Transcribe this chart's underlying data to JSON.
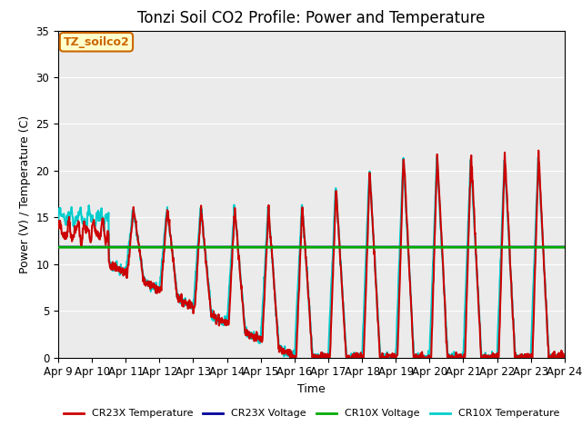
{
  "title": "Tonzi Soil CO2 Profile: Power and Temperature",
  "ylabel": "Power (V) / Temperature (C)",
  "xlabel": "Time",
  "ylim": [
    0,
    35
  ],
  "xlim": [
    0,
    15
  ],
  "xtick_labels": [
    "Apr 9",
    "Apr 10",
    "Apr 11",
    "Apr 12",
    "Apr 13",
    "Apr 14",
    "Apr 15",
    "Apr 16",
    "Apr 17",
    "Apr 18",
    "Apr 19",
    "Apr 20",
    "Apr 21",
    "Apr 22",
    "Apr 23",
    "Apr 24"
  ],
  "ytick_labels": [
    "0",
    "5",
    "10",
    "15",
    "20",
    "25",
    "30",
    "35"
  ],
  "ytick_vals": [
    0,
    5,
    10,
    15,
    20,
    25,
    30,
    35
  ],
  "annotation_label": "TZ_soilco2",
  "annotation_color": "#cc6600",
  "annotation_bg": "#ffffcc",
  "cr10x_voltage_value": 11.8,
  "cr23x_voltage_value": 11.85,
  "legend_entries": [
    {
      "label": "CR23X Temperature",
      "color": "#cc0000",
      "lw": 1.5
    },
    {
      "label": "CR23X Voltage",
      "color": "#000099",
      "lw": 1.5
    },
    {
      "label": "CR10X Voltage",
      "color": "#00aa00",
      "lw": 2.0
    },
    {
      "label": "CR10X Temperature",
      "color": "#00cccc",
      "lw": 1.5
    }
  ],
  "background_color": "#ebebeb",
  "grid_color": "#ffffff",
  "title_fontsize": 12,
  "axis_fontsize": 9,
  "tick_fontsize": 8.5,
  "figsize": [
    6.4,
    4.8
  ],
  "dpi": 100
}
